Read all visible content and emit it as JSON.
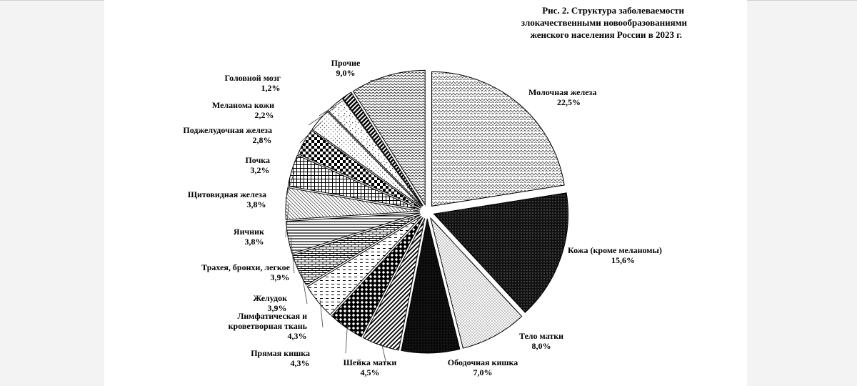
{
  "chart_data": {
    "type": "pie",
    "title": [
      "Рис. 2. Структура заболеваемости",
      "злокачественными новообразованиями",
      "женского населения России в 2023 г."
    ],
    "slices": [
      {
        "label": "Молочная железа",
        "value": 22.5,
        "value_label": "22,5%",
        "pattern": "wave-light"
      },
      {
        "label": "Кожа (кроме меланомы)",
        "value": 15.6,
        "value_label": "15,6%",
        "pattern": "dark-dots"
      },
      {
        "label": "Тело матки",
        "value": 8.0,
        "value_label": "8,0%",
        "pattern": "fine-dots"
      },
      {
        "label": "Ободочная кишка",
        "value": 7.0,
        "value_label": "7,0%",
        "pattern": "dark-solid"
      },
      {
        "label": "Шейка матки",
        "value": 4.5,
        "value_label": "4,5%",
        "pattern": "diag-up"
      },
      {
        "label": "Прямая кишка",
        "value": 4.3,
        "value_label": "4,3%",
        "pattern": "diamond"
      },
      {
        "label": "Лимфатическая  и\nкроветворная ткань",
        "value": 4.3,
        "value_label": "4,3%",
        "pattern": "dashes"
      },
      {
        "label": "Желудок",
        "value": 3.9,
        "value_label": "3,9%",
        "pattern": "brick"
      },
      {
        "label": "Трахея, бронхи, легкое",
        "value": 3.9,
        "value_label": "3,9%",
        "pattern": "hlines"
      },
      {
        "label": "Яичник",
        "value": 3.8,
        "value_label": "3,8%",
        "pattern": "diag-down"
      },
      {
        "label": "Щитовидная железа",
        "value": 3.8,
        "value_label": "3,8%",
        "pattern": "grid"
      },
      {
        "label": "Почка",
        "value": 3.2,
        "value_label": "3,2%",
        "pattern": "checker"
      },
      {
        "label": "Поджелудочная железа",
        "value": 2.8,
        "value_label": "2,8%",
        "pattern": "sparse-dots"
      },
      {
        "label": "Меланома кожи",
        "value": 2.2,
        "value_label": "2,2%",
        "pattern": "confetti"
      },
      {
        "label": "Головной мозг",
        "value": 1.2,
        "value_label": "1,2%",
        "pattern": "diag-bold"
      },
      {
        "label": "Прочие",
        "value": 9.0,
        "value_label": "9,0%",
        "pattern": "zigzag"
      }
    ],
    "legend": "none"
  }
}
